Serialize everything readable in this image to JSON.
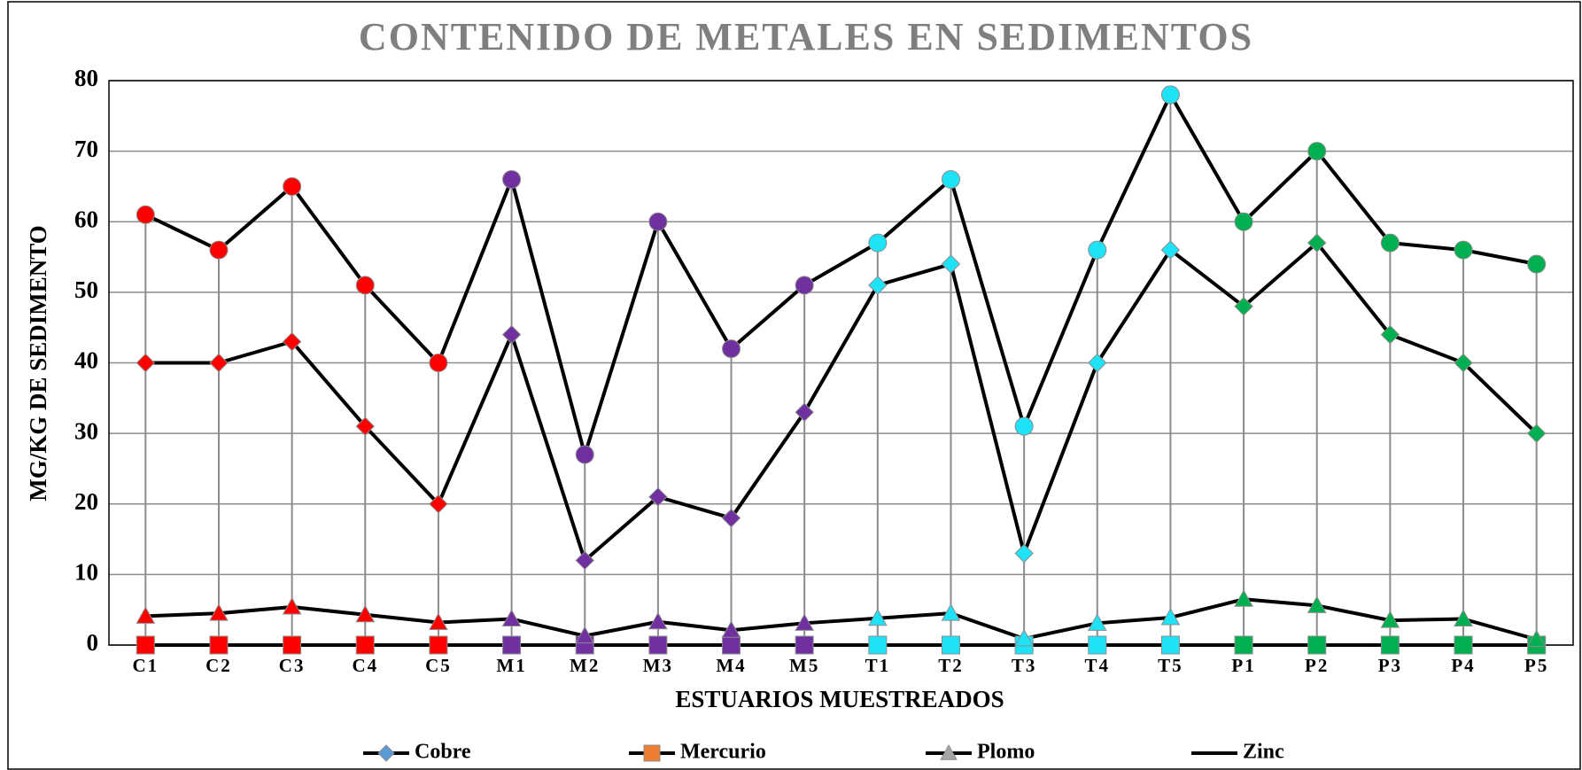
{
  "chart_data": {
    "type": "line",
    "title": "CONTENIDO DE METALES EN SEDIMENTOS",
    "x_label": "ESTUARIOS MUESTREADOS",
    "y_label": "MG/KG DE SEDIMENTO",
    "categories": [
      "C1",
      "C2",
      "C3",
      "C4",
      "C5",
      "M1",
      "M2",
      "M3",
      "M4",
      "M5",
      "T1",
      "T2",
      "T3",
      "T4",
      "T5",
      "P1",
      "P2",
      "P3",
      "P4",
      "P5"
    ],
    "category_colors": [
      "#ff0000",
      "#ff0000",
      "#ff0000",
      "#ff0000",
      "#ff0000",
      "#7030a0",
      "#7030a0",
      "#7030a0",
      "#7030a0",
      "#7030a0",
      "#1ee3f7",
      "#1ee3f7",
      "#1ee3f7",
      "#1ee3f7",
      "#1ee3f7",
      "#00b050",
      "#00b050",
      "#00b050",
      "#00b050",
      "#00b050"
    ],
    "line_color": "#000000",
    "series": [
      {
        "name": "Cobre",
        "color": "#5b9bd5",
        "marker": "diamond",
        "values": [
          40,
          40,
          43,
          31,
          20,
          44,
          12,
          21,
          18,
          33,
          51,
          54,
          13,
          40,
          56,
          48,
          57,
          44,
          40,
          30
        ]
      },
      {
        "name": "Mercurio",
        "color": "#ed7d31",
        "marker": "square",
        "values": [
          0,
          0,
          0,
          0,
          0,
          0,
          0,
          0,
          0,
          0,
          0,
          0,
          0,
          0,
          0,
          0,
          0,
          0,
          0,
          0
        ]
      },
      {
        "name": "Plomo",
        "color": "#a5a5a5",
        "marker": "triangle",
        "values": [
          4.1,
          4.5,
          5.4,
          4.3,
          3.2,
          3.7,
          1.3,
          3.3,
          2.1,
          3.1,
          3.8,
          4.5,
          0.9,
          3.1,
          3.9,
          6.5,
          5.6,
          3.5,
          3.7,
          0.8
        ]
      },
      {
        "name": "Zinc",
        "color": "#000000",
        "marker": "circle",
        "values": [
          61,
          56,
          65,
          51,
          40,
          66,
          27,
          60,
          42,
          51,
          57,
          66,
          31,
          56,
          78,
          60,
          70,
          57,
          56,
          54
        ]
      }
    ],
    "drop_lines": true,
    "ylim": [
      0,
      80
    ],
    "yticks": [
      0,
      10,
      20,
      30,
      40,
      50,
      60,
      70,
      80
    ],
    "grid": true,
    "legend": "bottom"
  }
}
